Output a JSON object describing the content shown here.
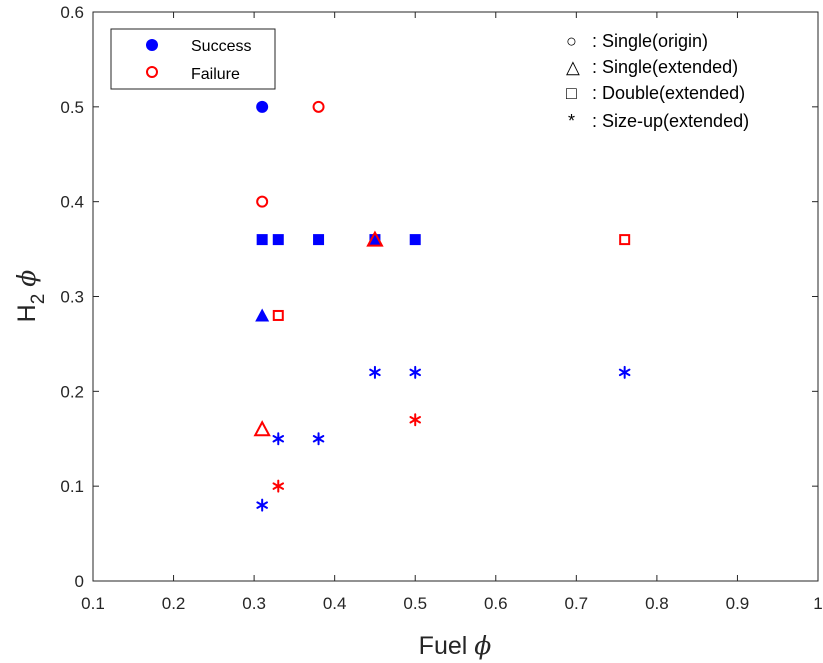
{
  "chart_data": {
    "type": "scatter",
    "xlabel": "Fuel",
    "xlabel_symbol": "ϕ",
    "ylabel_base": "H",
    "ylabel_sub": "2",
    "ylabel_symbol": "ϕ",
    "xlim": [
      0.1,
      1.0
    ],
    "ylim": [
      0,
      0.6
    ],
    "x_ticks": [
      "0.1",
      "0.2",
      "0.3",
      "0.4",
      "0.5",
      "0.6",
      "0.7",
      "0.8",
      "0.9",
      "1"
    ],
    "y_ticks": [
      "0",
      "0.1",
      "0.2",
      "0.3",
      "0.4",
      "0.5",
      "0.6"
    ],
    "grid": false,
    "colors": {
      "success": "#0000ff",
      "failure": "#ff0000",
      "axis": "#262626"
    },
    "legend": {
      "placement": "top-left",
      "entries": [
        {
          "label": "Success",
          "marker": "filled-circle",
          "color": "#0000ff"
        },
        {
          "label": "Failure",
          "marker": "open-circle",
          "color": "#ff0000"
        }
      ]
    },
    "shape_legend": [
      {
        "symbol": "○",
        "label": ": Single(origin)"
      },
      {
        "symbol": "△",
        "label": ": Single(extended)"
      },
      {
        "symbol": "□",
        "label": ": Double(extended)"
      },
      {
        "symbol": "*",
        "label": ": Size-up(extended)"
      }
    ],
    "points": [
      {
        "x": 0.31,
        "y": 0.5,
        "shape": "circle",
        "outcome": "success"
      },
      {
        "x": 0.38,
        "y": 0.5,
        "shape": "circle",
        "outcome": "failure"
      },
      {
        "x": 0.31,
        "y": 0.4,
        "shape": "circle",
        "outcome": "failure"
      },
      {
        "x": 0.31,
        "y": 0.36,
        "shape": "square",
        "outcome": "success"
      },
      {
        "x": 0.33,
        "y": 0.36,
        "shape": "square",
        "outcome": "success"
      },
      {
        "x": 0.38,
        "y": 0.36,
        "shape": "square",
        "outcome": "success"
      },
      {
        "x": 0.45,
        "y": 0.36,
        "shape": "square",
        "outcome": "success"
      },
      {
        "x": 0.5,
        "y": 0.36,
        "shape": "square",
        "outcome": "success"
      },
      {
        "x": 0.76,
        "y": 0.36,
        "shape": "square",
        "outcome": "failure"
      },
      {
        "x": 0.45,
        "y": 0.36,
        "shape": "triangle",
        "outcome": "failure"
      },
      {
        "x": 0.31,
        "y": 0.28,
        "shape": "triangle",
        "outcome": "success"
      },
      {
        "x": 0.33,
        "y": 0.28,
        "shape": "square",
        "outcome": "failure"
      },
      {
        "x": 0.45,
        "y": 0.22,
        "shape": "asterisk",
        "outcome": "success"
      },
      {
        "x": 0.5,
        "y": 0.22,
        "shape": "asterisk",
        "outcome": "success"
      },
      {
        "x": 0.76,
        "y": 0.22,
        "shape": "asterisk",
        "outcome": "success"
      },
      {
        "x": 0.5,
        "y": 0.17,
        "shape": "asterisk",
        "outcome": "failure"
      },
      {
        "x": 0.31,
        "y": 0.16,
        "shape": "triangle",
        "outcome": "failure"
      },
      {
        "x": 0.33,
        "y": 0.15,
        "shape": "asterisk",
        "outcome": "success"
      },
      {
        "x": 0.38,
        "y": 0.15,
        "shape": "asterisk",
        "outcome": "success"
      },
      {
        "x": 0.33,
        "y": 0.1,
        "shape": "asterisk",
        "outcome": "failure"
      },
      {
        "x": 0.31,
        "y": 0.08,
        "shape": "asterisk",
        "outcome": "success"
      }
    ]
  }
}
